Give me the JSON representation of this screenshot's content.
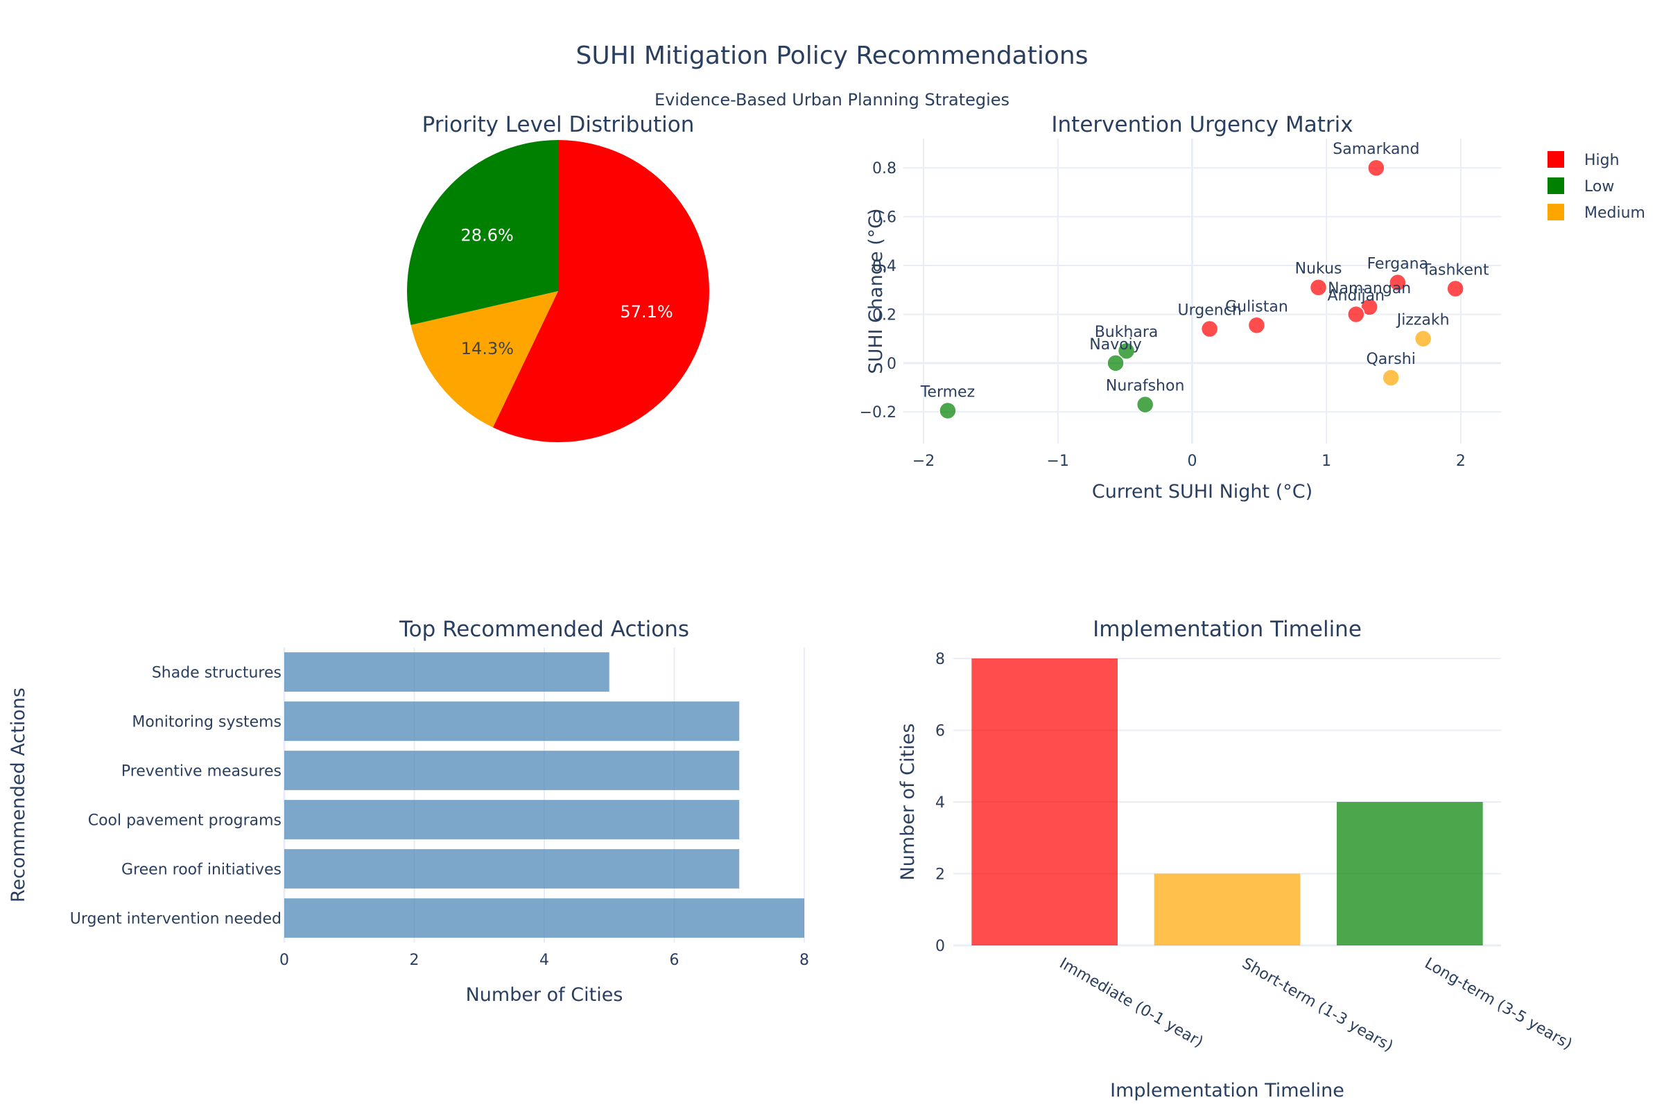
{
  "figure": {
    "title": "SUHI Mitigation Policy Recommendations",
    "subtitle": "Evidence-Based Urban Planning Strategies"
  },
  "colors": {
    "High": "#ff0000",
    "Low": "#008000",
    "Medium": "#ffa500",
    "bar_blue": "#4682b4",
    "text": "#2a3f5f",
    "grid": "#e9edf5"
  },
  "chart_data": [
    {
      "type": "pie",
      "title": "Priority Level Distribution",
      "slices": [
        {
          "label": "High",
          "value": 57.1,
          "text": "57.1%"
        },
        {
          "label": "Medium",
          "value": 14.3,
          "text": "14.3%"
        },
        {
          "label": "Low",
          "value": 28.6,
          "text": "28.6%"
        }
      ]
    },
    {
      "type": "scatter",
      "title": "Intervention Urgency Matrix",
      "xlabel": "Current SUHI Night (°C)",
      "ylabel": "SUHI Change (°C)",
      "xlim": [
        -2.15,
        2.3
      ],
      "ylim": [
        -0.33,
        0.92
      ],
      "xticks": [
        -2,
        -1,
        0,
        1,
        2
      ],
      "yticks": [
        -0.2,
        0,
        0.2,
        0.4,
        0.6,
        0.8
      ],
      "ytick_labels": [
        "−0.2",
        "0",
        "0.2",
        "0.4",
        "0.6",
        "0.8"
      ],
      "xtick_labels": [
        "−2",
        "−1",
        "0",
        "1",
        "2"
      ],
      "legend": [
        "High",
        "Low",
        "Medium"
      ],
      "legend_position": "top-right",
      "points": [
        {
          "city": "Samarkand",
          "x": 1.37,
          "y": 0.8,
          "priority": "High"
        },
        {
          "city": "Tashkent",
          "x": 1.96,
          "y": 0.305,
          "priority": "High"
        },
        {
          "city": "Fergana",
          "x": 1.53,
          "y": 0.33,
          "priority": "High"
        },
        {
          "city": "Nukus",
          "x": 0.94,
          "y": 0.31,
          "priority": "High"
        },
        {
          "city": "Namangan",
          "x": 1.32,
          "y": 0.23,
          "priority": "High"
        },
        {
          "city": "Andijan",
          "x": 1.22,
          "y": 0.2,
          "priority": "High"
        },
        {
          "city": "Gulistan",
          "x": 0.48,
          "y": 0.155,
          "priority": "High"
        },
        {
          "city": "Urgench",
          "x": 0.13,
          "y": 0.14,
          "priority": "High"
        },
        {
          "city": "Jizzakh",
          "x": 1.72,
          "y": 0.1,
          "priority": "Medium"
        },
        {
          "city": "Qarshi",
          "x": 1.48,
          "y": -0.06,
          "priority": "Medium"
        },
        {
          "city": "Bukhara",
          "x": -0.49,
          "y": 0.05,
          "priority": "Low"
        },
        {
          "city": "Navoiy",
          "x": -0.57,
          "y": 0.0,
          "priority": "Low"
        },
        {
          "city": "Nurafshon",
          "x": -0.35,
          "y": -0.17,
          "priority": "Low"
        },
        {
          "city": "Termez",
          "x": -1.82,
          "y": -0.195,
          "priority": "Low"
        }
      ]
    },
    {
      "type": "bar",
      "orientation": "horizontal",
      "title": "Top Recommended Actions",
      "xlabel": "Number of Cities",
      "ylabel": "Recommended Actions",
      "xlim": [
        0,
        8
      ],
      "xticks": [
        0,
        2,
        4,
        6,
        8
      ],
      "categories": [
        "Shade structures",
        "Monitoring systems",
        "Preventive measures",
        "Cool pavement programs",
        "Green roof initiatives",
        "Urgent intervention needed"
      ],
      "values": [
        5,
        7,
        7,
        7,
        7,
        8
      ]
    },
    {
      "type": "bar",
      "title": "Implementation Timeline",
      "xlabel": "Implementation Timeline",
      "ylabel": "Number of Cities",
      "ylim": [
        0,
        8
      ],
      "yticks": [
        0,
        2,
        4,
        6,
        8
      ],
      "categories": [
        "Immediate (0-1 year)",
        "Short-term (1-3 years)",
        "Long-term (3-5 years)"
      ],
      "values": [
        8,
        2,
        4
      ],
      "bar_colors": [
        "High",
        "Medium",
        "Low"
      ]
    }
  ]
}
